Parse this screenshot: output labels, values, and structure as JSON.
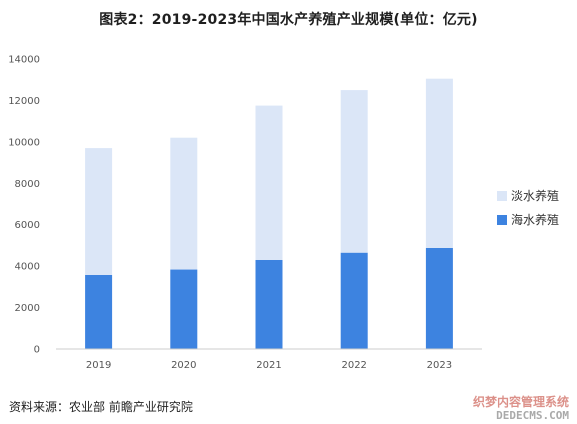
{
  "title": "图表2：2019-2023年中国水产养殖产业规模(单位：亿元)",
  "source": "资料来源：农业部 前瞻产业研究院",
  "watermark": {
    "brand": "织梦内容管理系统",
    "url": "DEDECMS.COM"
  },
  "colors": {
    "freshwater": "#dbe6f7",
    "marine": "#3d83e0",
    "axis": "#cccccc"
  },
  "chart_data": {
    "type": "bar",
    "stacked": true,
    "title": "图表2：2019-2023年中国水产养殖产业规模(单位：亿元)",
    "categories": [
      "2019",
      "2020",
      "2021",
      "2022",
      "2023"
    ],
    "series": [
      {
        "name": "海水养殖",
        "values": [
          3575,
          3836,
          4301,
          4650,
          4880
        ]
      },
      {
        "name": "淡水养殖",
        "values": [
          6125,
          6364,
          7449,
          7850,
          8170
        ]
      }
    ],
    "ylim": [
      0,
      14000
    ],
    "yticks": [
      "0",
      "2000",
      "4000",
      "6000",
      "8000",
      "10000",
      "12000",
      "14000"
    ],
    "grid": false,
    "legend": "right"
  }
}
